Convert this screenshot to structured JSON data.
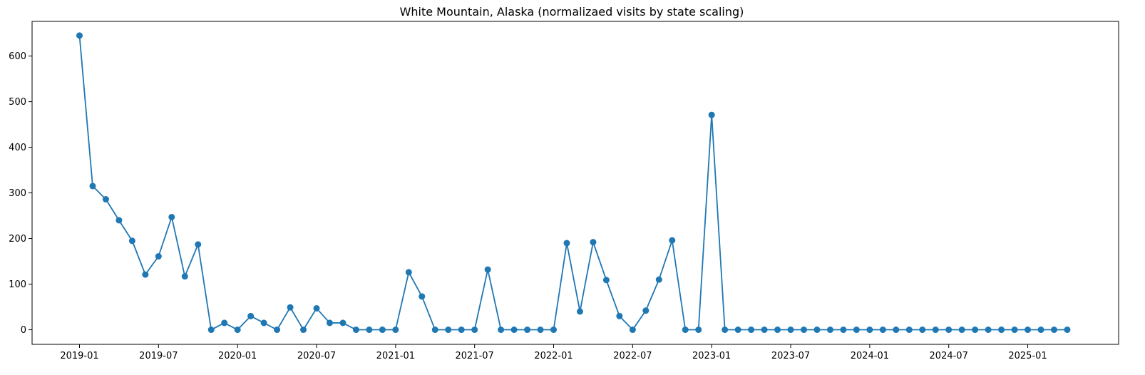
{
  "chart_data": {
    "type": "line",
    "title": "White Mountain, Alaska (normalizaed visits by state scaling)",
    "xlabel": "",
    "ylabel": "",
    "ylim": [
      -32,
      676
    ],
    "x_start": "2019-01",
    "x_end_limit_months": [
      -3.6,
      78.9
    ],
    "x_ticks": [
      "2019-01",
      "2019-07",
      "2020-01",
      "2020-07",
      "2021-01",
      "2021-07",
      "2022-01",
      "2022-07",
      "2023-01",
      "2023-07",
      "2024-01",
      "2024-07",
      "2025-01"
    ],
    "y_ticks": [
      0,
      100,
      200,
      300,
      400,
      500,
      600
    ],
    "grid": false,
    "marker": "circle",
    "color": "#1f77b4",
    "series": [
      {
        "name": "visits",
        "x": [
          "2019-01",
          "2019-02",
          "2019-03",
          "2019-04",
          "2019-05",
          "2019-06",
          "2019-07",
          "2019-08",
          "2019-09",
          "2019-10",
          "2019-11",
          "2019-12",
          "2020-01",
          "2020-02",
          "2020-03",
          "2020-04",
          "2020-05",
          "2020-06",
          "2020-07",
          "2020-08",
          "2020-09",
          "2020-10",
          "2020-11",
          "2020-12",
          "2021-01",
          "2021-02",
          "2021-03",
          "2021-04",
          "2021-05",
          "2021-06",
          "2021-07",
          "2021-08",
          "2021-09",
          "2021-10",
          "2021-11",
          "2021-12",
          "2022-01",
          "2022-02",
          "2022-03",
          "2022-04",
          "2022-05",
          "2022-06",
          "2022-07",
          "2022-08",
          "2022-09",
          "2022-10",
          "2022-11",
          "2022-12",
          "2023-01",
          "2023-02",
          "2023-03",
          "2023-04",
          "2023-05",
          "2023-06",
          "2023-07",
          "2023-08",
          "2023-09",
          "2023-10",
          "2023-11",
          "2023-12",
          "2024-01",
          "2024-02",
          "2024-03",
          "2024-04",
          "2024-05",
          "2024-06",
          "2024-07",
          "2024-08",
          "2024-09",
          "2024-10",
          "2024-11",
          "2024-12",
          "2025-01",
          "2025-02",
          "2025-03",
          "2025-04"
        ],
        "values": [
          645,
          315,
          286,
          240,
          195,
          121,
          161,
          247,
          117,
          187,
          0,
          15,
          0,
          30,
          15,
          0,
          49,
          0,
          47,
          15,
          15,
          0,
          0,
          0,
          0,
          126,
          73,
          0,
          0,
          0,
          0,
          132,
          0,
          0,
          0,
          0,
          0,
          190,
          40,
          192,
          109,
          30,
          0,
          42,
          110,
          196,
          0,
          0,
          471,
          0,
          0,
          0,
          0,
          0,
          0,
          0,
          0,
          0,
          0,
          0,
          0,
          0,
          0,
          0,
          0,
          0,
          0,
          0,
          0,
          0,
          0,
          0,
          0,
          0,
          0,
          0
        ]
      }
    ]
  }
}
